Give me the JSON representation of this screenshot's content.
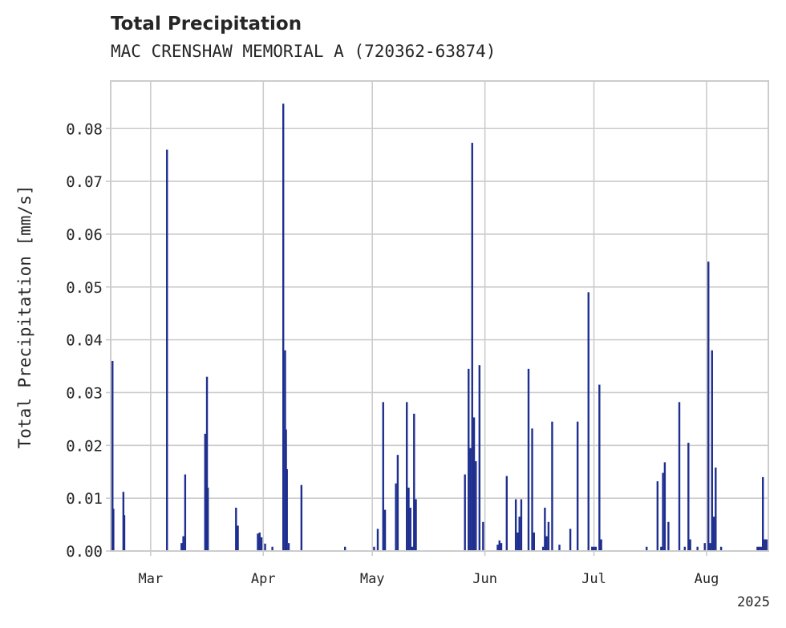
{
  "chart_data": {
    "type": "bar",
    "title": "Total Precipitation",
    "subtitle": "MAC CRENSHAW MEMORIAL A (720362-63874)",
    "ylabel": "Total Precipitation [mm/s]",
    "xlabel": "",
    "year_label": "2025",
    "x_range": [
      "2025-02-18",
      "2025-08-18"
    ],
    "ylim": [
      0,
      0.089
    ],
    "yticks": [
      0.0,
      0.01,
      0.02,
      0.03,
      0.04,
      0.05,
      0.06,
      0.07,
      0.08
    ],
    "ytick_labels": [
      "0.00",
      "0.01",
      "0.02",
      "0.03",
      "0.04",
      "0.05",
      "0.06",
      "0.07",
      "0.08"
    ],
    "xticks": [
      {
        "date": "2025-03-01",
        "label": "Mar"
      },
      {
        "date": "2025-04-01",
        "label": "Apr"
      },
      {
        "date": "2025-05-01",
        "label": "May"
      },
      {
        "date": "2025-06-01",
        "label": "Jun"
      },
      {
        "date": "2025-07-01",
        "label": "Jul"
      },
      {
        "date": "2025-08-01",
        "label": "Aug"
      }
    ],
    "grid": true,
    "bar_color": "#1f2f8f",
    "series": [
      {
        "points": [
          [
            "2025-02-18T12:00",
            0.036
          ],
          [
            "2025-02-18T18:00",
            0.008
          ],
          [
            "2025-02-21T12:00",
            0.0112
          ],
          [
            "2025-02-21T18:00",
            0.0068
          ],
          [
            "2025-03-05T12:00",
            0.076
          ],
          [
            "2025-03-09T12:00",
            0.0015
          ],
          [
            "2025-03-10T00:00",
            0.0028
          ],
          [
            "2025-03-10T12:00",
            0.0145
          ],
          [
            "2025-03-16T00:00",
            0.0222
          ],
          [
            "2025-03-16T12:00",
            0.033
          ],
          [
            "2025-03-16T18:00",
            0.012
          ],
          [
            "2025-03-24T12:00",
            0.0082
          ],
          [
            "2025-03-25T00:00",
            0.0048
          ],
          [
            "2025-03-30T12:00",
            0.0033
          ],
          [
            "2025-03-31T00:00",
            0.0035
          ],
          [
            "2025-03-31T12:00",
            0.0026
          ],
          [
            "2025-04-01T12:00",
            0.0014
          ],
          [
            "2025-04-03T12:00",
            0.0008
          ],
          [
            "2025-04-06T12:00",
            0.0847
          ],
          [
            "2025-04-07T00:00",
            0.038
          ],
          [
            "2025-04-07T06:00",
            0.023
          ],
          [
            "2025-04-07T12:00",
            0.0155
          ],
          [
            "2025-04-08T00:00",
            0.0015
          ],
          [
            "2025-04-11T12:00",
            0.0125
          ],
          [
            "2025-04-23T12:00",
            0.0008
          ],
          [
            "2025-05-01T12:00",
            0.0008
          ],
          [
            "2025-05-02T12:00",
            0.0042
          ],
          [
            "2025-05-04T00:00",
            0.0282
          ],
          [
            "2025-05-04T12:00",
            0.0078
          ],
          [
            "2025-05-07T12:00",
            0.0128
          ],
          [
            "2025-05-08T00:00",
            0.0182
          ],
          [
            "2025-05-10T12:00",
            0.0282
          ],
          [
            "2025-05-11T00:00",
            0.012
          ],
          [
            "2025-05-11T12:00",
            0.0082
          ],
          [
            "2025-05-12T00:00",
            0.0008
          ],
          [
            "2025-05-12T12:00",
            0.026
          ],
          [
            "2025-05-13T00:00",
            0.0098
          ],
          [
            "2025-05-26T12:00",
            0.0145
          ],
          [
            "2025-05-27T12:00",
            0.0345
          ],
          [
            "2025-05-28T00:00",
            0.0195
          ],
          [
            "2025-05-28T12:00",
            0.0773
          ],
          [
            "2025-05-29T00:00",
            0.0253
          ],
          [
            "2025-05-29T12:00",
            0.017
          ],
          [
            "2025-05-30T12:00",
            0.0352
          ],
          [
            "2025-05-31T12:00",
            0.0055
          ],
          [
            "2025-06-04T12:00",
            0.0012
          ],
          [
            "2025-06-05T00:00",
            0.002
          ],
          [
            "2025-06-05T12:00",
            0.0015
          ],
          [
            "2025-06-07T00:00",
            0.0142
          ],
          [
            "2025-06-09T12:00",
            0.0098
          ],
          [
            "2025-06-10T00:00",
            0.0035
          ],
          [
            "2025-06-10T12:00",
            0.0065
          ],
          [
            "2025-06-11T00:00",
            0.0098
          ],
          [
            "2025-06-13T00:00",
            0.0345
          ],
          [
            "2025-06-14T00:00",
            0.0232
          ],
          [
            "2025-06-14T12:00",
            0.0035
          ],
          [
            "2025-06-17T00:00",
            0.0008
          ],
          [
            "2025-06-17T12:00",
            0.0082
          ],
          [
            "2025-06-18T00:00",
            0.0028
          ],
          [
            "2025-06-18T12:00",
            0.0055
          ],
          [
            "2025-06-19T12:00",
            0.0245
          ],
          [
            "2025-06-21T12:00",
            0.0012
          ],
          [
            "2025-06-24T12:00",
            0.0042
          ],
          [
            "2025-06-26T12:00",
            0.0245
          ],
          [
            "2025-06-29T12:00",
            0.049
          ],
          [
            "2025-06-30T12:00",
            0.0008
          ],
          [
            "2025-07-01T00:00",
            0.0008
          ],
          [
            "2025-07-01T12:00",
            0.0008
          ],
          [
            "2025-07-02T12:00",
            0.0315
          ],
          [
            "2025-07-03T00:00",
            0.0022
          ],
          [
            "2025-07-15T12:00",
            0.0008
          ],
          [
            "2025-07-18T12:00",
            0.0132
          ],
          [
            "2025-07-19T12:00",
            0.0008
          ],
          [
            "2025-07-20T00:00",
            0.0148
          ],
          [
            "2025-07-20T12:00",
            0.0168
          ],
          [
            "2025-07-21T12:00",
            0.0055
          ],
          [
            "2025-07-24T12:00",
            0.0282
          ],
          [
            "2025-07-26T00:00",
            0.0008
          ],
          [
            "2025-07-27T00:00",
            0.0205
          ],
          [
            "2025-07-27T12:00",
            0.0022
          ],
          [
            "2025-07-29T12:00",
            0.0008
          ],
          [
            "2025-07-31T12:00",
            0.0015
          ],
          [
            "2025-08-01T12:00",
            0.0548
          ],
          [
            "2025-08-02T00:00",
            0.0015
          ],
          [
            "2025-08-02T12:00",
            0.038
          ],
          [
            "2025-08-03T00:00",
            0.0065
          ],
          [
            "2025-08-03T12:00",
            0.0158
          ],
          [
            "2025-08-05T00:00",
            0.0008
          ],
          [
            "2025-08-15T00:00",
            0.0008
          ],
          [
            "2025-08-15T12:00",
            0.0008
          ],
          [
            "2025-08-16T00:00",
            0.0008
          ],
          [
            "2025-08-16T12:00",
            0.014
          ],
          [
            "2025-08-17T00:00",
            0.0022
          ],
          [
            "2025-08-17T12:00",
            0.0022
          ]
        ]
      }
    ]
  }
}
